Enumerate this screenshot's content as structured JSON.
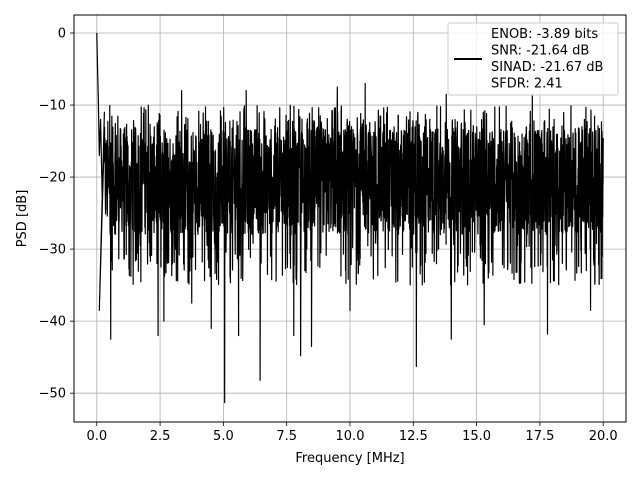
{
  "chart_data": {
    "type": "line",
    "xlabel": "Frequency [MHz]",
    "ylabel": "PSD [dB]",
    "xlim": [
      -0.9,
      20.9
    ],
    "ylim": [
      -54,
      2.5
    ],
    "xticks": [
      0.0,
      2.5,
      5.0,
      7.5,
      10.0,
      12.5,
      15.0,
      17.5,
      20.0
    ],
    "xtick_labels": [
      "0.0",
      "2.5",
      "5.0",
      "7.5",
      "10.0",
      "12.5",
      "15.0",
      "17.5",
      "20.0"
    ],
    "yticks": [
      0,
      -10,
      -20,
      -30,
      -40,
      -50
    ],
    "ytick_labels": [
      "0",
      "−10",
      "−20",
      "−30",
      "−40",
      "−50"
    ],
    "grid": true,
    "legend_placement": "top-right",
    "line_color": "#000000",
    "legend_entries": [
      "ENOB: -3.89 bits",
      "SNR: -21.64 dB",
      "SINAD: -21.67 dB",
      "SFDR: 2.41"
    ],
    "noise_band": {
      "typical_min_db": -28,
      "typical_max_db": -13
    },
    "series": [
      {
        "values_by_segment_note": "dense noise floor, representative samples",
        "x": [
          0.0,
          0.03,
          0.06,
          0.1,
          0.15,
          0.22,
          0.3,
          0.5,
          0.75,
          1.0,
          1.25,
          1.5,
          2.0,
          2.5,
          3.0,
          3.5,
          4.0,
          4.5,
          5.0,
          5.5,
          6.0,
          6.5,
          7.0,
          7.5,
          8.0,
          8.5,
          9.0,
          9.5,
          10.0,
          10.5,
          11.0,
          11.5,
          12.0,
          12.5,
          13.0,
          13.5,
          14.0,
          14.5,
          15.0,
          15.5,
          16.0,
          16.5,
          17.0,
          17.5,
          18.0,
          18.5,
          19.0,
          19.5,
          20.0
        ],
        "y": [
          0.0,
          -5.0,
          -9.0,
          -17.0,
          -12.0,
          -24.0,
          -11.0,
          -20.0,
          -18.0,
          -22.0,
          -15.0,
          -25.0,
          -18.0,
          -21.0,
          -14.0,
          -23.0,
          -19.0,
          -26.0,
          -17.0,
          -20.0,
          -13.0,
          -24.0,
          -18.0,
          -22.0,
          -16.0,
          -21.0,
          -14.0,
          -25.0,
          -19.0,
          -17.0,
          -23.0,
          -15.0,
          -20.0,
          -18.0,
          -24.0,
          -16.0,
          -21.0,
          -13.0,
          -22.0,
          -19.0,
          -25.0,
          -17.0,
          -20.0,
          -14.0,
          -23.0,
          -18.0,
          -21.0,
          -16.0,
          -20.0
        ]
      }
    ],
    "notable_dips": [
      {
        "x": 0.1,
        "y": -38.5
      },
      {
        "x": 0.55,
        "y": -42.5
      },
      {
        "x": 2.42,
        "y": -42.0
      },
      {
        "x": 2.65,
        "y": -40.0
      },
      {
        "x": 3.75,
        "y": -37.5
      },
      {
        "x": 4.52,
        "y": -41.0
      },
      {
        "x": 5.05,
        "y": -51.3
      },
      {
        "x": 5.6,
        "y": -42.0
      },
      {
        "x": 6.45,
        "y": -48.2
      },
      {
        "x": 7.78,
        "y": -42.0
      },
      {
        "x": 8.05,
        "y": -44.8
      },
      {
        "x": 8.48,
        "y": -43.5
      },
      {
        "x": 10.0,
        "y": -38.5
      },
      {
        "x": 12.62,
        "y": -46.3
      },
      {
        "x": 14.0,
        "y": -42.5
      },
      {
        "x": 15.3,
        "y": -40.5
      },
      {
        "x": 17.8,
        "y": -41.8
      },
      {
        "x": 19.5,
        "y": -38.5
      }
    ],
    "notable_peaks": [
      {
        "x": 3.35,
        "y": -8.0
      },
      {
        "x": 5.9,
        "y": -8.0
      },
      {
        "x": 9.5,
        "y": -7.5
      },
      {
        "x": 10.6,
        "y": -7.0
      },
      {
        "x": 13.8,
        "y": -8.5
      },
      {
        "x": 17.2,
        "y": -8.5
      }
    ]
  }
}
